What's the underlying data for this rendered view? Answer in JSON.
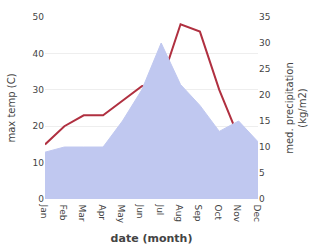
{
  "chart_data": {
    "type": "line",
    "x_label": "date (month)",
    "y_label": "max temp (C)",
    "y2_label": "med. precipitation\n(kg/m2)",
    "categories": [
      "Jan",
      "Feb",
      "Mar",
      "Apr",
      "May",
      "Jun",
      "Jul",
      "Aug",
      "Sep",
      "Oct",
      "Nov",
      "Dec"
    ],
    "series": [
      {
        "type": "area",
        "axis": "y2",
        "color": "#c0c8f0",
        "values": [
          9,
          10,
          10,
          10,
          15,
          21,
          30,
          22,
          18,
          13,
          15,
          11
        ]
      },
      {
        "type": "line",
        "axis": "y",
        "color": "#b03040",
        "values": [
          15,
          20,
          23,
          23,
          27,
          31,
          32,
          48,
          46,
          30,
          17,
          15
        ]
      }
    ],
    "ylim": [
      0,
      50
    ],
    "yticks": [
      0,
      10,
      20,
      30,
      40,
      50
    ],
    "y2lim": [
      0,
      35
    ],
    "y2ticks": [
      0,
      5,
      10,
      15,
      20,
      25,
      30,
      35
    ],
    "grid": true
  }
}
